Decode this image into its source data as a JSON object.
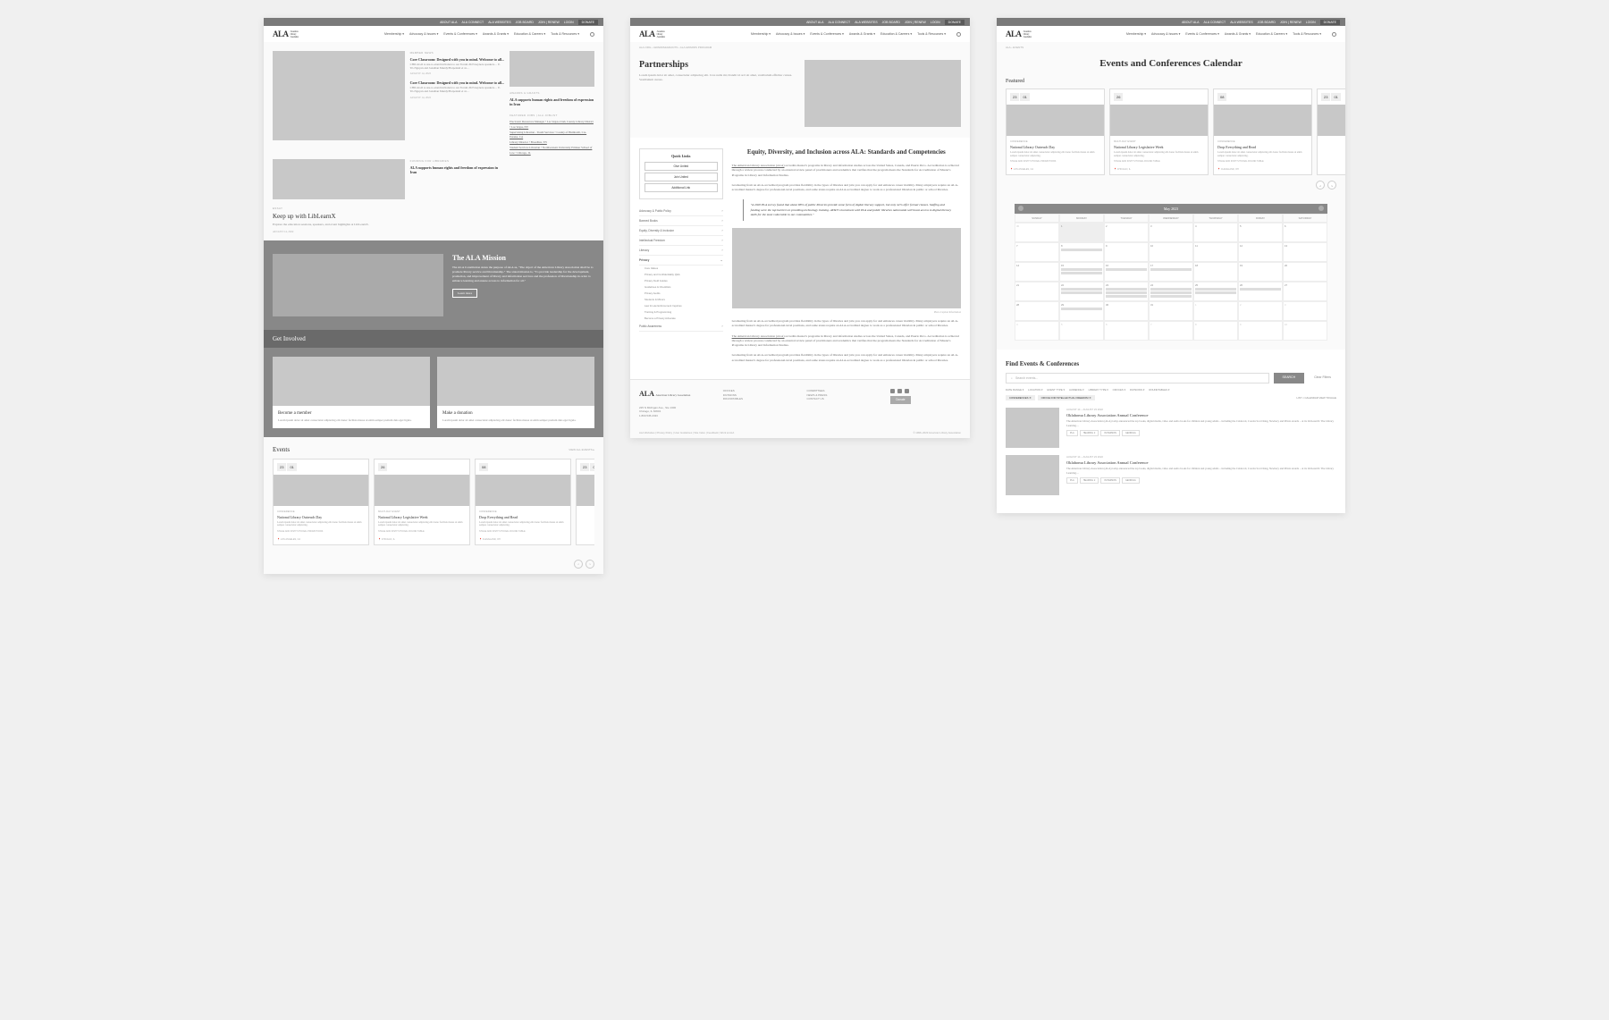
{
  "utilBar": [
    "ABOUT ALA",
    "ALA CONNECT",
    "ALA WEBSITES",
    "JOB BOARD",
    "JOIN | RENEW",
    "LOGIN"
  ],
  "utilDonate": "DONATE",
  "logo": "ALA",
  "logoSub1": "American",
  "logoSub2": "Library",
  "logoSub3": "Association",
  "nav": [
    "Membership ▾",
    "Advocacy & Issues ▾",
    "Events & Conferences ▾",
    "Awards & Grants ▾",
    "Education & Careers ▾",
    "Tools & Resources ▾"
  ],
  "s1": {
    "memberNews": "MEMBER NEWS",
    "news1": {
      "title": "Core Classroom: Designed with you in mind. Welcome to all...",
      "body": "CHICAGO A one-to-stand invitation to our Forum 2023 keynote speakers… E. Tri-Nguyen and Jonathan Mundy/Harpeland et al.…",
      "meta": "AUGUST 14, 2022"
    },
    "news2": {
      "title": "Core Classroom: Designed with you in mind. Welcome to all...",
      "body": "CHICAGO A one-to-stand invitation to our Forum 2023 keynote speakers… E. Tri-Nguyen and Jonathan Mundy/Harpeland et al.…",
      "meta": "AUGUST 14, 2022"
    },
    "awards": "AWARDS & GRANTS",
    "awardsTxt": "ALA supports human rights and freedom of expression in Iran",
    "featured": "FEATURED JOBS | ALA JOBLIST",
    "jobs": [
      "Electronic Resources Manager • Las Vegas-Clark County Library District • Las Vegas, NV",
      "Supervising Librarian - Youth Services • County of Humboldt, CA-Eureka, CA",
      "Library Director • Broadbus, TN",
      "Student Services Librarian • Northwestern University Pritzker School of Law • Chicago, IL"
    ],
    "funding": "FUNDING FOR LIBRARIES",
    "fundingTxt": "ALA supports human rights and freedom of expression in Iran",
    "essay": "ESSAY",
    "essayTitle": "Keep up with LibLearnX",
    "essayBody": "Explore the education sessions, speakers, and event highlights at LibLearnX.",
    "essayMeta": "AUGUST 14, 2022",
    "missionTitle": "The ALA Mission",
    "missionBody": "The ALA Constitution states the purpose of ALA as, \"The object of the American Library Association shall be to promote library service and librarianship.\" The stated mission is, \"To provide leadership for the development, promotion, and improvement of library and information services and the profession of librarianship in order to enhance learning and ensure access to information for all.\"",
    "missionBtn": "Learn more",
    "involvedTitle": "Get Involved",
    "card1": {
      "title": "Become a member",
      "body": "Lorem ipsum dolor sit amet consectetur adipiscing elit donec facilisis massa ut enim semper pretium duis eget ligula."
    },
    "card2": {
      "title": "Make a donation",
      "body": "Lorem ipsum dolor sit amet consectetur adipiscing elit donec facilisis massa ut enim semper pretium duis eget ligula."
    },
    "eventsTitle": "Events",
    "viewAll": "VIEW ALL EVENTS ▸"
  },
  "events": [
    {
      "d1": "23",
      "d2": "01",
      "type": "CONFERENCE",
      "title": "National Library Outreach Day",
      "desc": "Lorem ipsum dolor sit amet consectetur adipiscing elit donec facilisis massa ut enim semper consectetur adipiscing.",
      "meta": "STAGE AND INSTITUTIONAL PROMOTIONS",
      "loc": "LOS ANGELES, CA"
    },
    {
      "d1": "26",
      "d2": "",
      "type": "MULTI-DAY EVENT",
      "title": "National Library Legislative Week",
      "desc": "Lorem ipsum dolor sit amet consectetur adipiscing elit donec facilisis massa ut enim semper consectetur adipiscing.",
      "meta": "STAGE AND INSTITUTIONAL ROUND TABLE",
      "loc": "CHICAGO, IL"
    },
    {
      "d1": "08",
      "d2": "",
      "type": "CONFERENCE",
      "title": "Drop Everything and Read",
      "desc": "Lorem ipsum dolor sit amet consectetur adipiscing elit donec facilisis massa ut enim semper consectetur adipiscing.",
      "meta": "STAGE AND INSTITUTIONAL ROUND TABLE",
      "loc": "CLEVELAND, OH"
    }
  ],
  "s2": {
    "bc": "ALA.ORG  ›  AWARDS&GRANTS  ›  ALA AWARDS PROGRAM",
    "title": "Partnerships",
    "intro": "Lorem ipsum dolor sit amet, consectetur adipiscing elit. Cras nulla mi, blandit id orci sit amet, vestibulum efficitur cursus. Vestibulum cursus.",
    "quickTitle": "Quick Links",
    "quick": [
      "Give United",
      "Join United",
      "Additional Link"
    ],
    "sideNav": [
      "Advocacy & Public Policy",
      "Banned Books",
      "Equity, Diversity & Inclusion",
      "Intellectual Freedom",
      "Literacy"
    ],
    "sideActive": "Privacy",
    "sideSub": [
      "Core Values",
      "Privacy and Confidentiality Q&A",
      "Privacy Field Guides",
      "Guidelines & Checklists",
      "Privacy Audits",
      "Students & Minors",
      "Law & Law Enforcement Inquiries",
      "Training & Programming",
      "Become a Privacy Advocate"
    ],
    "sideLast": "Public Awareness",
    "h2": "Equity, Diversity, and Inclusion across ALA: Standards and Competencies",
    "p1a": "The American Library Association (ALA)",
    "p1b": " accredits master's programs in library and information studies across the United States, Canada, and Puerto Rico. Accreditation is achieved through a review process conducted by an external review panel of practitioners and academics that verifies that the program meets the Standards for Accreditation of Master's Programs in Library and Information Studies.",
    "p2": "Graduating from an ALA-accredited program provides flexibility in the types of libraries and jobs you can apply for and enhances career mobility. Many employers require an ALA-accredited master's degree for professional-level positions, and some states require an ALA-accredited degree to work as a professional librarian in public or school libraries.",
    "quote": "\"A 2020 PLA survey found that about 88% of public libraries provide some form of digital literacy support, but only 42% offer formal classes. Staffing and funding were the top barriers to providing technology training. AT&T's investment with PLA and public libraries nationwide will boost access to digital literacy skills for the most vulnerable in our communities.\"",
    "caption": "Photo Caption Information",
    "footerAddr1": "225 N Michigan Ave., Ste 1300",
    "footerAddr2": "Chicago, IL 60601",
    "footerAddr3": "1.800.545.2433",
    "footerCol1": [
      "OFFICES",
      "DIVISIONS",
      "ROUNDTABLES"
    ],
    "footerCol2": [
      "COMMITTEES",
      "NEWS & PRESS",
      "CONTACT US"
    ],
    "footerDonate": "Donate",
    "footerLinks": "ALA Websites  |  Privacy Policy  |  User Guidelines  |  Site Index  |  Feedback  |  Work at ALA",
    "copyright": "© 1996–2023 American Library Association"
  },
  "s3": {
    "bc": "ALA  ›  EVENTS",
    "title": "Events and Conferences Calendar",
    "featured": "Featured",
    "calMonth": "May 2023",
    "days": [
      "SUNDAY",
      "MONDAY",
      "TUESDAY",
      "WEDNESDAY",
      "THURSDAY",
      "FRIDAY",
      "SATURDAY"
    ],
    "findTitle": "Find Events & Conferences",
    "searchPh": "Search events...",
    "searchBtn": "SEARCH",
    "clearBtn": "Clear Filters",
    "filters": [
      "DATE RANGE ▾",
      "LOCATION ▾",
      "EVENT TYPE ▾",
      "AUDIENCE ▾",
      "LIBRARY TYPE ▾",
      "OFFICES ▾",
      "DIVISIONS ▾",
      "ROUNDTABLES ▾"
    ],
    "chips": [
      "CONFERENCES ✕",
      "OFFICE FOR INTELLECTUAL FREEDOM ✕"
    ],
    "viewToggle": "LIST × CALENDAR VIEW TOGGLE",
    "result": {
      "date": "AUGUST 14 – AUGUST 23 2022",
      "title": "Oklahoma Library Association Annual Conference",
      "desc": "The American Library Association (ALA) today announced the top books, digital media, video and audio books for children and young adults – including the Caldecott, Coretta Scott King, Newbery and Printz awards – at its LibLearnX: The Library Learning…",
      "tags": [
        "PLA",
        "HEADING 2",
        "IN PERSON",
        "GEORGIA"
      ]
    }
  }
}
